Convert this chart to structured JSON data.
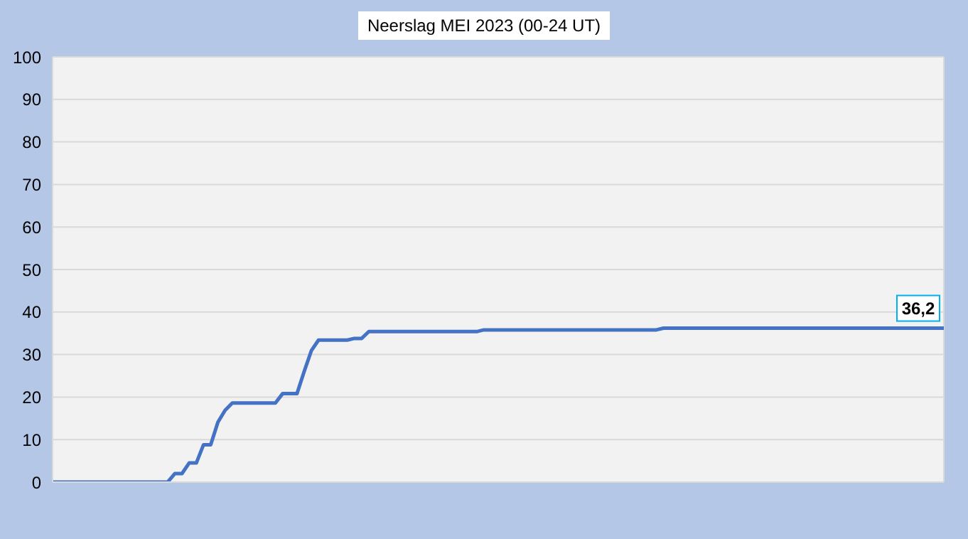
{
  "chart_data": {
    "type": "line",
    "title": "Neerslag MEI  2023 (00-24 UT)",
    "categories": [
      null,
      null,
      null,
      null,
      null,
      null,
      null,
      null,
      null,
      null,
      null,
      null,
      null,
      null,
      null,
      null,
      null,
      null,
      null,
      null,
      null,
      null,
      null,
      null,
      null,
      null,
      null,
      null,
      null,
      null,
      null,
      null,
      null,
      null,
      null,
      null,
      null,
      null,
      null,
      null,
      null,
      null,
      null,
      null,
      null,
      null,
      null,
      null,
      null,
      null,
      null,
      null,
      null,
      null,
      null,
      null,
      null,
      null,
      null,
      null,
      null,
      null,
      null,
      null,
      null,
      null,
      null,
      null,
      null,
      null,
      null,
      null,
      null,
      null,
      null,
      null,
      null,
      null,
      null,
      null,
      null,
      null,
      null,
      null,
      null,
      null,
      null,
      null,
      null,
      null,
      null,
      null,
      null,
      null,
      null,
      null,
      null,
      null,
      null,
      null,
      null,
      null,
      null,
      null,
      null,
      null,
      null,
      null,
      null,
      null,
      null,
      null,
      null,
      null,
      null,
      null,
      null,
      null,
      null,
      null,
      null,
      null,
      null,
      null,
      null
    ],
    "series": [
      {
        "color": "#4472c4",
        "values": [
          0,
          0,
          0,
          0,
          0,
          0,
          0,
          0,
          0,
          0,
          0,
          0,
          0,
          0,
          0,
          0,
          0,
          2,
          2,
          4.5,
          4.5,
          8.8,
          8.8,
          14.1,
          16.9,
          18.6,
          18.6,
          18.6,
          18.6,
          18.6,
          18.6,
          18.6,
          20.8,
          20.8,
          20.8,
          26,
          30.9,
          33.4,
          33.4,
          33.4,
          33.4,
          33.4,
          33.8,
          33.8,
          35.4,
          35.4,
          35.4,
          35.4,
          35.4,
          35.4,
          35.4,
          35.4,
          35.4,
          35.4,
          35.4,
          35.4,
          35.4,
          35.4,
          35.4,
          35.4,
          35.8,
          35.8,
          35.8,
          35.8,
          35.8,
          35.8,
          35.8,
          35.8,
          35.8,
          35.8,
          35.8,
          35.8,
          35.8,
          35.8,
          35.8,
          35.8,
          35.8,
          35.8,
          35.8,
          35.8,
          35.8,
          35.8,
          35.8,
          35.8,
          35.8,
          36.2,
          36.2,
          36.2,
          36.2,
          36.2,
          36.2,
          36.2,
          36.2,
          36.2,
          36.2,
          36.2,
          36.2,
          36.2,
          36.2,
          36.2,
          36.2,
          36.2,
          36.2,
          36.2,
          36.2,
          36.2,
          36.2,
          36.2,
          36.2,
          36.2,
          36.2,
          36.2,
          36.2,
          36.2,
          36.2,
          36.2,
          36.2,
          36.2,
          36.2,
          36.2,
          36.2,
          36.2,
          36.2,
          36.2,
          36.2
        ],
        "value_labels": [
          null,
          null,
          null,
          null,
          null,
          null,
          null,
          null,
          null,
          null,
          null,
          null,
          null,
          null,
          null,
          null,
          null,
          null,
          null,
          null,
          null,
          null,
          null,
          null,
          null,
          null,
          null,
          null,
          null,
          null,
          null,
          null,
          null,
          null,
          null,
          null,
          null,
          null,
          null,
          null,
          null,
          null,
          null,
          null,
          null,
          null,
          null,
          null,
          null,
          null,
          null,
          null,
          null,
          null,
          null,
          null,
          null,
          null,
          null,
          null,
          null,
          null,
          null,
          null,
          null,
          null,
          null,
          null,
          null,
          null,
          null,
          null,
          null,
          null,
          null,
          null,
          null,
          null,
          null,
          null,
          null,
          null,
          null,
          null,
          null,
          null,
          null,
          null,
          null,
          null,
          null,
          null,
          null,
          null,
          null,
          null,
          null,
          null,
          null,
          null,
          null,
          null,
          null,
          null,
          null,
          null,
          null,
          null,
          null,
          null,
          null,
          null,
          null,
          null,
          null,
          null,
          null,
          null,
          null,
          null,
          null,
          null,
          null,
          null,
          "36,2"
        ]
      }
    ],
    "ylim": [
      0,
      100
    ],
    "yticks": [
      0,
      10,
      20,
      30,
      40,
      50,
      60,
      70,
      80,
      90,
      100
    ],
    "grid": true,
    "marker": "none",
    "line_style": "solid"
  }
}
